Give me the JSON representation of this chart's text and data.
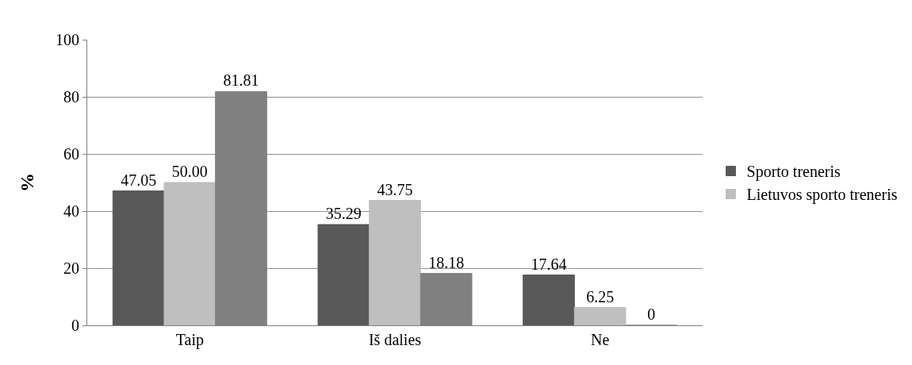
{
  "chart_data": {
    "type": "bar",
    "ylabel": "%",
    "categories": [
      "Taip",
      "Iš dalies",
      "Ne"
    ],
    "series": [
      {
        "name": "Sporto treneris",
        "color": "#595959",
        "values": [
          47.05,
          35.29,
          17.64
        ],
        "value_labels": [
          "47.05",
          "35.29",
          "17.64"
        ]
      },
      {
        "name": "Lietuvos sporto treneris",
        "color": "#bfbfbf",
        "values": [
          50.0,
          43.75,
          6.25
        ],
        "value_labels": [
          "50.00",
          "43.75",
          "6.25"
        ]
      },
      {
        "color": "#808080",
        "values": [
          81.81,
          18.18,
          0
        ],
        "value_labels": [
          "81.81",
          "18.18",
          "0"
        ]
      }
    ],
    "ylim": [
      0,
      100
    ],
    "yticks": [
      0,
      20,
      40,
      60,
      80,
      100
    ],
    "grid": "y",
    "legend": "right"
  }
}
